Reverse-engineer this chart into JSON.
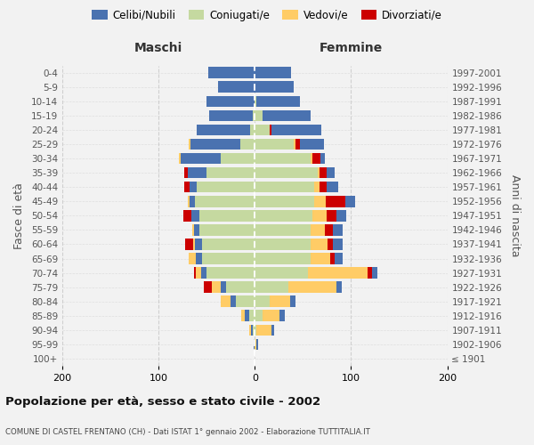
{
  "age_groups": [
    "100+",
    "95-99",
    "90-94",
    "85-89",
    "80-84",
    "75-79",
    "70-74",
    "65-69",
    "60-64",
    "55-59",
    "50-54",
    "45-49",
    "40-44",
    "35-39",
    "30-34",
    "25-29",
    "20-24",
    "15-19",
    "10-14",
    "5-9",
    "0-4"
  ],
  "birth_years": [
    "≤ 1901",
    "1902-1906",
    "1907-1911",
    "1912-1916",
    "1917-1921",
    "1922-1926",
    "1927-1931",
    "1932-1936",
    "1937-1941",
    "1942-1946",
    "1947-1951",
    "1952-1956",
    "1957-1961",
    "1962-1966",
    "1967-1971",
    "1972-1976",
    "1977-1981",
    "1982-1986",
    "1987-1991",
    "1992-1996",
    "1997-2001"
  ],
  "maschi": {
    "celibe": [
      0,
      1,
      2,
      4,
      5,
      5,
      6,
      6,
      7,
      5,
      8,
      6,
      8,
      20,
      42,
      52,
      55,
      45,
      50,
      38,
      48
    ],
    "coniugato": [
      0,
      0,
      2,
      6,
      20,
      30,
      50,
      55,
      55,
      58,
      58,
      62,
      60,
      50,
      35,
      15,
      5,
      2,
      0,
      0,
      0
    ],
    "vedovo": [
      0,
      0,
      2,
      4,
      10,
      10,
      5,
      8,
      2,
      2,
      0,
      2,
      0,
      0,
      2,
      2,
      0,
      0,
      0,
      0,
      0
    ],
    "divorziato": [
      0,
      0,
      0,
      0,
      0,
      8,
      2,
      0,
      8,
      0,
      8,
      0,
      5,
      3,
      0,
      0,
      0,
      0,
      0,
      0,
      0
    ]
  },
  "femmine": {
    "nubile": [
      0,
      1,
      3,
      5,
      5,
      5,
      5,
      8,
      10,
      10,
      10,
      10,
      12,
      8,
      5,
      25,
      52,
      50,
      45,
      40,
      38
    ],
    "coniugata": [
      0,
      0,
      2,
      8,
      15,
      35,
      55,
      58,
      58,
      58,
      60,
      62,
      62,
      65,
      58,
      40,
      15,
      8,
      2,
      0,
      0
    ],
    "vedova": [
      0,
      2,
      15,
      18,
      22,
      50,
      62,
      20,
      18,
      15,
      15,
      12,
      5,
      2,
      2,
      2,
      0,
      0,
      0,
      0,
      0
    ],
    "divorziata": [
      0,
      0,
      0,
      0,
      0,
      0,
      5,
      5,
      5,
      8,
      10,
      20,
      8,
      8,
      8,
      5,
      2,
      0,
      0,
      0,
      0
    ]
  },
  "colors": {
    "celibe": "#4A72B0",
    "coniugato": "#C5D9A0",
    "vedovo": "#FFCC66",
    "divorziato": "#CC0000"
  },
  "xlim": 200,
  "title": "Popolazione per età, sesso e stato civile - 2002",
  "subtitle": "COMUNE DI CASTEL FRENTANO (CH) - Dati ISTAT 1° gennaio 2002 - Elaborazione TUTTITALIA.IT",
  "ylabel": "Fasce di età",
  "ylabel_right": "Anni di nascita",
  "xlabel_left": "Maschi",
  "xlabel_right": "Femmine",
  "bg_color": "#f2f2f2",
  "grid_color": "#cccccc"
}
